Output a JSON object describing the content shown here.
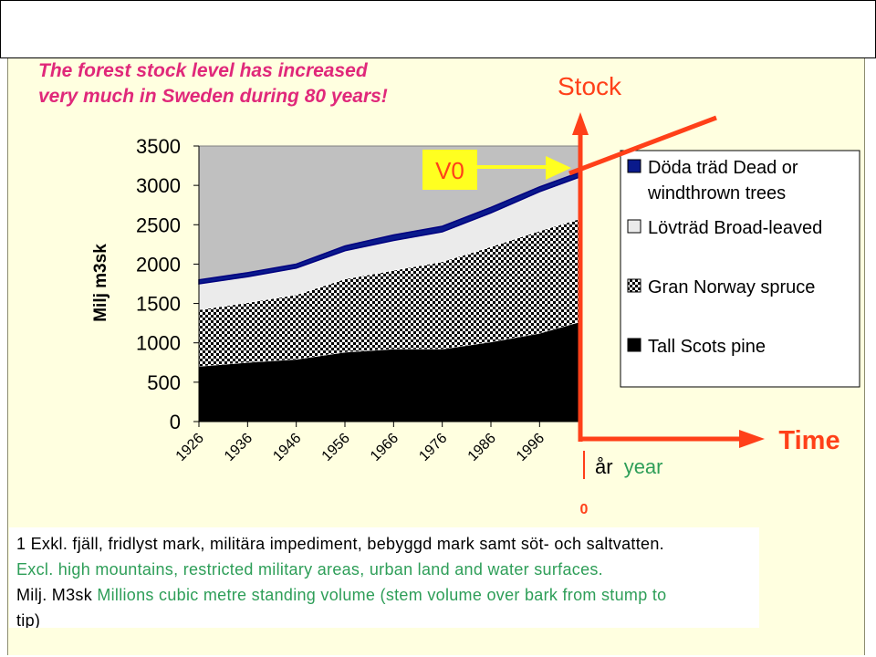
{
  "headline": {
    "line1": "The forest stock level has increased",
    "line2": "very much in Sweden during 80 years!"
  },
  "annotations": {
    "stock": "Stock",
    "time": "Time",
    "v0": "V0",
    "zero": "0",
    "year_sv": "år",
    "year_en": "year"
  },
  "footnote": {
    "line1": "1 Exkl. fjäll, fridlyst mark, militära impediment, bebyggd mark samt söt- och saltvatten.",
    "line2": "Excl. high mountains, restricted military areas, urban land and water surfaces.",
    "line3_prefix": "Milj. M3sk",
    "line3_rest": "Millions cubic metre standing volume (stem volume over bark from stump to",
    "line4": "tip)"
  },
  "colors": {
    "accent_red": "#ff4019",
    "headline_pink": "#e0287a",
    "green_text": "#2e9e58",
    "arrow_yellow": "#ffff20",
    "panel_bg": "#ffffe0",
    "plot_bg": "#c0c0c0"
  },
  "chart_data": {
    "type": "area",
    "stacked": true,
    "ylabel": "Milj m3sk",
    "ylim": [
      0,
      3500
    ],
    "yticks": [
      0,
      500,
      1000,
      1500,
      2000,
      2500,
      3000,
      3500
    ],
    "xlim": [
      1926,
      2004
    ],
    "xtick_labels": [
      "1926",
      "1936",
      "1946",
      "1956",
      "1966",
      "1976",
      "1986",
      "1996"
    ],
    "x": [
      1926,
      1936,
      1946,
      1956,
      1966,
      1976,
      1986,
      1996,
      2004
    ],
    "legend_position": "right",
    "grid": false,
    "series": [
      {
        "name": "Tall Scots pine",
        "fill": "black",
        "values": [
          700,
          750,
          790,
          880,
          920,
          920,
          1010,
          1120,
          1260
        ]
      },
      {
        "name": "Gran Norway spruce",
        "fill": "checker",
        "values": [
          720,
          760,
          820,
          930,
          1000,
          1110,
          1210,
          1300,
          1310
        ]
      },
      {
        "name": "Lövträd Broad-leaved",
        "fill": "white",
        "values": [
          330,
          330,
          340,
          360,
          380,
          380,
          430,
          500,
          530
        ]
      },
      {
        "name": "Döda träd Dead or windthrown trees",
        "fill": "navy",
        "values": [
          50,
          50,
          50,
          60,
          70,
          70,
          70,
          60,
          60
        ]
      }
    ],
    "legend": [
      {
        "line1": "Döda träd Dead or",
        "line2": "windthrown trees"
      },
      {
        "line1": "Lövträd Broad-leaved"
      },
      {
        "line1": "Gran Norway spruce"
      },
      {
        "line1": "Tall Scots pine"
      }
    ]
  }
}
